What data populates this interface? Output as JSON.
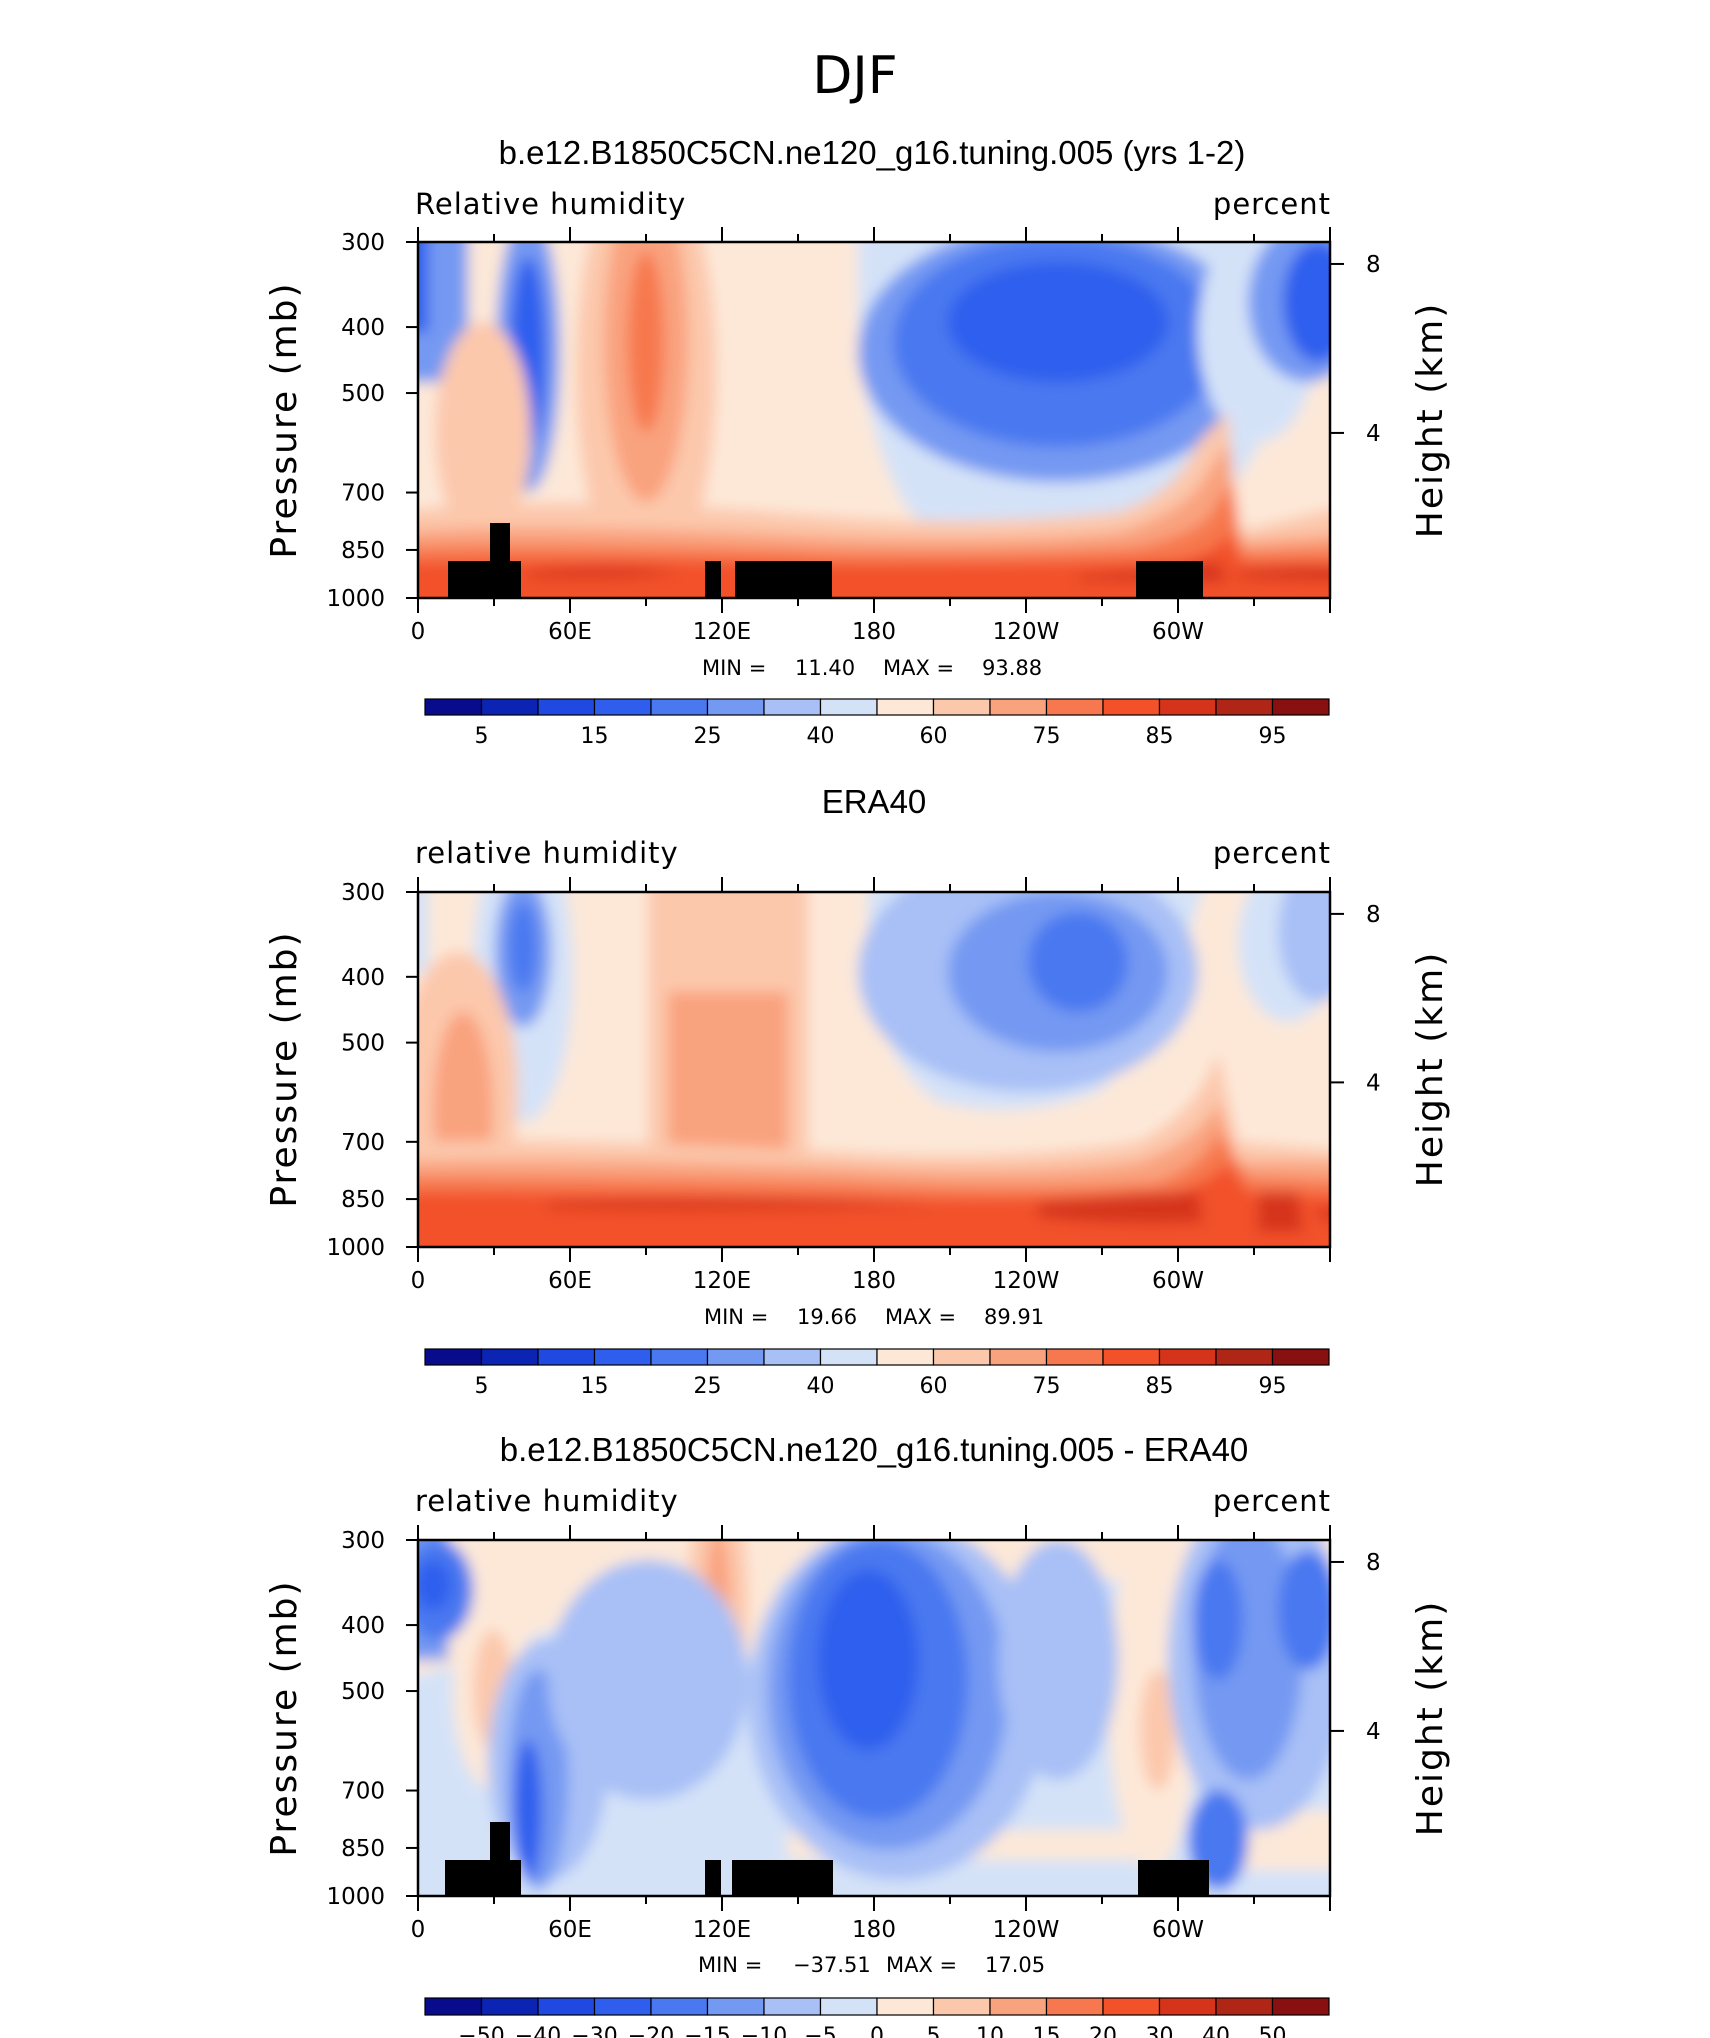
{
  "figure_title": "DJF",
  "chart_data": [
    {
      "type": "heatmap",
      "title": "b.e12.B1850C5CN.ne120_g16.tuning.005 (yrs 1-2)",
      "left_label": "Relative humidity",
      "right_label": "percent",
      "ylabel": "Pressure (mb)",
      "ylabel_right": "Height (km)",
      "y_ticks": [
        "300",
        "400",
        "500",
        "700",
        "850",
        "1000"
      ],
      "y_ticks_right": [
        "8",
        "4"
      ],
      "x_ticks": [
        "0",
        "60E",
        "120E",
        "180",
        "120W",
        "60W"
      ],
      "ylim": [
        1000,
        300
      ],
      "min_label": "MIN =",
      "min_value": "11.40",
      "max_label": "MAX =",
      "max_value": "93.88",
      "colorbar_labels": [
        "5",
        "15",
        "25",
        "40",
        "60",
        "75",
        "85",
        "95"
      ],
      "terrain": true
    },
    {
      "type": "heatmap",
      "title": "ERA40",
      "left_label": "relative humidity",
      "right_label": "percent",
      "ylabel": "Pressure (mb)",
      "ylabel_right": "Height (km)",
      "y_ticks": [
        "300",
        "400",
        "500",
        "700",
        "850",
        "1000"
      ],
      "y_ticks_right": [
        "8",
        "4"
      ],
      "x_ticks": [
        "0",
        "60E",
        "120E",
        "180",
        "120W",
        "60W"
      ],
      "ylim": [
        1000,
        300
      ],
      "min_label": "MIN =",
      "min_value": "19.66",
      "max_label": "MAX =",
      "max_value": "89.91",
      "colorbar_labels": [
        "5",
        "15",
        "25",
        "40",
        "60",
        "75",
        "85",
        "95"
      ],
      "terrain": false
    },
    {
      "type": "heatmap",
      "title": "b.e12.B1850C5CN.ne120_g16.tuning.005 - ERA40",
      "left_label": "relative humidity",
      "right_label": "percent",
      "ylabel": "Pressure (mb)",
      "ylabel_right": "Height (km)",
      "y_ticks": [
        "300",
        "400",
        "500",
        "700",
        "850",
        "1000"
      ],
      "y_ticks_right": [
        "8",
        "4"
      ],
      "x_ticks": [
        "0",
        "60E",
        "120E",
        "180",
        "120W",
        "60W"
      ],
      "ylim": [
        1000,
        300
      ],
      "min_label": "MIN =",
      "min_value": "−37.51",
      "max_label": "MAX =",
      "max_value": "17.05",
      "colorbar_labels": [
        "−50",
        "−40",
        "−30",
        "−20",
        "−15",
        "−10",
        "−5",
        "0",
        "5",
        "10",
        "15",
        "20",
        "30",
        "40",
        "50"
      ],
      "terrain": true
    }
  ],
  "colors": {
    "palette": [
      "#080c8c",
      "#0b24b4",
      "#1f49e0",
      "#2f5eee",
      "#4a78f0",
      "#7499f2",
      "#a8c0f6",
      "#d4e2f8",
      "#fde8d8",
      "#fcc8ac",
      "#f9a27e",
      "#f7784e",
      "#f2512a",
      "#d6341a",
      "#b02616",
      "#881010"
    ],
    "terrain": "#000000"
  }
}
